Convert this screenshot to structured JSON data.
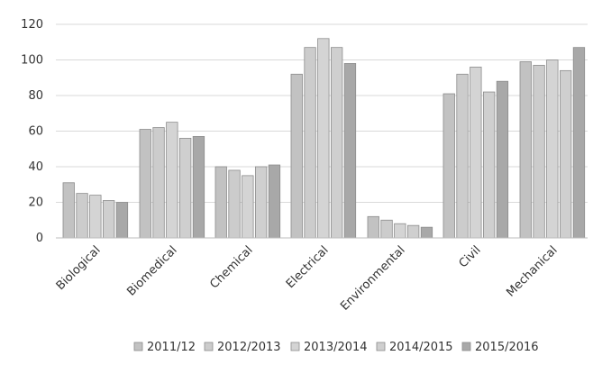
{
  "chart_data": {
    "type": "bar",
    "title": "",
    "xlabel": "",
    "ylabel": "",
    "ylim": [
      0,
      120
    ],
    "yticks": [
      0,
      20,
      40,
      60,
      80,
      100,
      120
    ],
    "grid": true,
    "legend_position": "bottom",
    "categories": [
      "Biological",
      "Biomedical",
      "Chemical",
      "Electrical",
      "Environmental",
      "Civil",
      "Mechanical"
    ],
    "series": [
      {
        "name": "2011/12",
        "color": "#c2c2c2",
        "values": [
          31,
          61,
          40,
          92,
          12,
          81,
          99
        ]
      },
      {
        "name": "2012/2013",
        "color": "#cccccc",
        "values": [
          25,
          62,
          38,
          107,
          10,
          92,
          97
        ]
      },
      {
        "name": "2013/2014",
        "color": "#d4d4d4",
        "values": [
          24,
          65,
          35,
          112,
          8,
          96,
          100
        ]
      },
      {
        "name": "2014/2015",
        "color": "#cfcfcf",
        "values": [
          21,
          56,
          40,
          107,
          7,
          82,
          94
        ]
      },
      {
        "name": "2015/2016",
        "color": "#a8a8a8",
        "values": [
          20,
          57,
          41,
          98,
          6,
          88,
          107
        ]
      }
    ]
  }
}
